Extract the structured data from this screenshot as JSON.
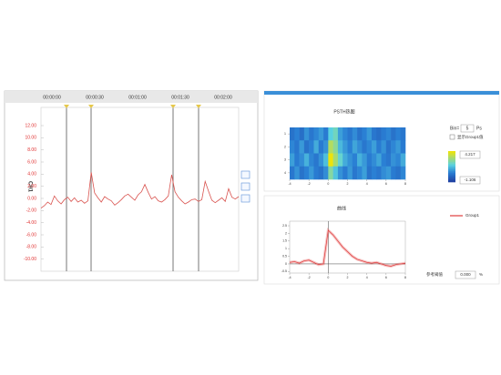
{
  "trace_panel": {
    "channel": "CH1",
    "time_labels": [
      "00:00:00",
      "00:00:30",
      "00:01:00",
      "00:01:30",
      "00:02:00"
    ],
    "ylim": [
      -12,
      15
    ],
    "yticks": [
      {
        "value": 12,
        "label": "12.00"
      },
      {
        "value": 10,
        "label": "10.00"
      },
      {
        "value": 8,
        "label": "8.00"
      },
      {
        "value": 6,
        "label": "6.00"
      },
      {
        "value": 4,
        "label": "4.00"
      },
      {
        "value": 2,
        "label": "2.00"
      },
      {
        "value": 0,
        "label": "0.00"
      },
      {
        "value": -2,
        "label": "-2.00"
      },
      {
        "value": -4,
        "label": "-4.00"
      },
      {
        "value": -6,
        "label": "-6.00"
      },
      {
        "value": -8,
        "label": "-8.00"
      },
      {
        "value": -10,
        "label": "-10.00"
      }
    ],
    "color": "#d9534f",
    "values": [
      -1.6,
      -1.2,
      -0.6,
      -1.0,
      0.4,
      -0.4,
      -0.9,
      -0.2,
      0.2,
      -0.5,
      0.1,
      -0.6,
      -0.3,
      -0.8,
      -0.4,
      4.3,
      0.9,
      0.1,
      -0.6,
      0.3,
      -0.1,
      -0.4,
      -1.1,
      -0.7,
      -0.2,
      0.4,
      0.7,
      0.2,
      -0.3,
      0.6,
      1.1,
      2.3,
      1.0,
      -0.1,
      0.3,
      -0.4,
      -0.6,
      -0.2,
      0.4,
      3.9,
      1.1,
      0.2,
      -0.4,
      -0.9,
      -0.6,
      -0.2,
      -0.1,
      -0.5,
      -0.2,
      2.8,
      1.2,
      -0.3,
      -0.7,
      -0.3,
      0.1,
      -0.5,
      1.6,
      0.2,
      -0.1,
      0.3
    ]
  },
  "heatmap_panel": {
    "title": "PSTH热图",
    "bin_label": "Bin=",
    "bin_value": "5",
    "bin_unit": "Ps",
    "checkbox_label": "显示Group1值",
    "color_max": 4.217,
    "color_min": -1.106,
    "xlim": [
      -4,
      8
    ],
    "xticks": [
      -4,
      -2,
      0,
      2,
      4,
      6,
      8
    ],
    "yticks": [
      1,
      2,
      3,
      4
    ],
    "rows": [
      [
        0.2,
        0.5,
        0.1,
        0.8,
        0.3,
        0.6,
        0.9,
        0.4,
        1.8,
        2.2,
        1.0,
        0.6,
        0.3,
        0.7,
        0.2,
        0.5,
        0.9,
        0.3,
        0.1,
        0.4,
        0.6,
        0.2,
        0.5,
        0.3
      ],
      [
        0.6,
        0.3,
        0.9,
        0.2,
        0.5,
        1.2,
        0.4,
        0.8,
        3.2,
        2.6,
        1.4,
        0.9,
        0.5,
        1.1,
        0.7,
        0.3,
        0.6,
        1.0,
        0.4,
        0.8,
        0.2,
        0.6,
        0.9,
        0.4
      ],
      [
        1.0,
        0.4,
        0.7,
        1.3,
        0.6,
        0.3,
        0.8,
        1.5,
        4.1,
        3.0,
        2.0,
        1.2,
        0.8,
        0.5,
        1.3,
        0.9,
        0.4,
        0.7,
        1.1,
        0.5,
        0.3,
        0.8,
        0.6,
        1.2
      ],
      [
        0.3,
        0.8,
        0.2,
        0.5,
        0.9,
        0.4,
        0.2,
        0.7,
        2.5,
        1.6,
        0.8,
        0.4,
        0.9,
        0.3,
        0.6,
        1.0,
        0.2,
        0.5,
        0.3,
        0.7,
        0.9,
        0.4,
        0.2,
        0.6
      ]
    ]
  },
  "curve_panel": {
    "title": "曲线",
    "legend": "Group1",
    "color": "#e03c3c",
    "threshold_label": "参考阈值",
    "threshold_value": "0.000",
    "threshold_unit": "%",
    "xlim": [
      -4,
      8
    ],
    "xticks": [
      -4,
      -2,
      0,
      2,
      4,
      6,
      8
    ],
    "ylim": [
      -0.6,
      2.8
    ],
    "yticks": [
      -0.5,
      0,
      0.5,
      1,
      1.5,
      2,
      2.5
    ],
    "x": [
      -4,
      -3.5,
      -3,
      -2.5,
      -2,
      -1.5,
      -1,
      -0.5,
      0,
      0.5,
      1,
      1.5,
      2,
      2.5,
      3,
      3.5,
      4,
      4.5,
      5,
      5.5,
      6,
      6.5,
      7,
      7.5,
      8
    ],
    "values": [
      0.1,
      0.15,
      0.05,
      0.2,
      0.25,
      0.1,
      -0.05,
      0.0,
      2.2,
      1.9,
      1.5,
      1.1,
      0.8,
      0.5,
      0.3,
      0.2,
      0.1,
      0.05,
      0.1,
      0.0,
      -0.1,
      -0.15,
      -0.05,
      0.0,
      0.05
    ]
  }
}
